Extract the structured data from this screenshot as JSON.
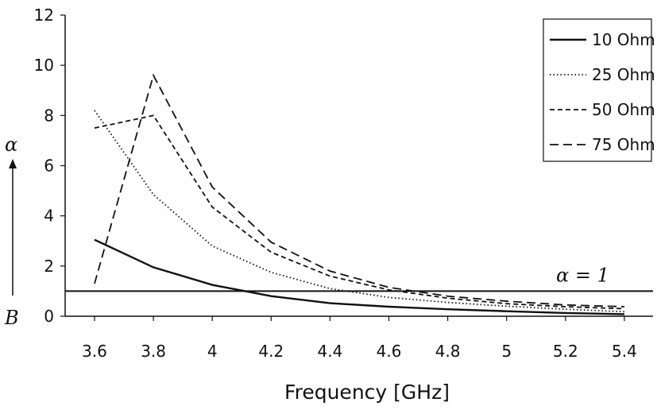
{
  "chart_data": {
    "type": "line",
    "xlabel": "Frequency [GHz]",
    "ylabel_top": "α",
    "ylabel_bottom": "B",
    "x": [
      3.6,
      3.8,
      4.0,
      4.2,
      4.4,
      4.6,
      4.8,
      5.0,
      5.2,
      5.4
    ],
    "xticks": [
      "3.6",
      "3.8",
      "4",
      "4.2",
      "4.4",
      "4.6",
      "4.8",
      "5",
      "5.2",
      "5.4"
    ],
    "yticks": [
      "0",
      "2",
      "4",
      "6",
      "8",
      "10",
      "12"
    ],
    "ylim": [
      0,
      12
    ],
    "grid": false,
    "legend_position": "top-right",
    "series": [
      {
        "name": "10 Ohm",
        "dash": "solid",
        "values": [
          3.05,
          1.95,
          1.25,
          0.8,
          0.52,
          0.38,
          0.28,
          0.2,
          0.13,
          0.08
        ]
      },
      {
        "name": "25 Ohm",
        "dash": "dotted",
        "values": [
          8.2,
          4.85,
          2.8,
          1.75,
          1.1,
          0.75,
          0.55,
          0.4,
          0.28,
          0.18
        ]
      },
      {
        "name": "50 Ohm",
        "dash": "dashed",
        "values": [
          7.5,
          8.0,
          4.35,
          2.55,
          1.6,
          1.05,
          0.72,
          0.5,
          0.38,
          0.3
        ]
      },
      {
        "name": "75 Ohm",
        "dash": "longdash",
        "values": [
          1.3,
          9.6,
          5.15,
          2.95,
          1.8,
          1.15,
          0.8,
          0.6,
          0.45,
          0.38
        ]
      }
    ],
    "reference_line": {
      "label": "α = 1",
      "y": 1
    }
  }
}
